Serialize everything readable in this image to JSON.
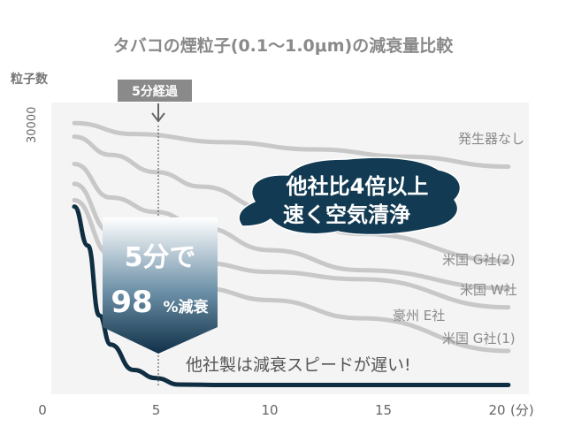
{
  "chart_data": {
    "type": "line",
    "title": "タバコの煙粒子(0.1〜1.0μm)の減衰量比較",
    "ylabel": "粒子数",
    "y_tick_labels": [
      "30000"
    ],
    "x_ticks": [
      0,
      5,
      10,
      15,
      20
    ],
    "x_unit": "(分)",
    "xlim": [
      0,
      20
    ],
    "ylim": [
      0,
      30000
    ],
    "grid": false,
    "marker": {
      "label": "5分経過",
      "x": 5
    },
    "series": [
      {
        "name": "発生器なし",
        "highlight": false,
        "x": [
          1.4,
          4,
          8,
          12,
          16,
          20.5
        ],
        "y": [
          29000,
          27800,
          26900,
          26100,
          25300,
          24200
        ]
      },
      {
        "name": "米国 G社(2)",
        "highlight": false,
        "x": [
          1.4,
          3,
          5,
          7,
          10,
          14,
          20.5
        ],
        "y": [
          27500,
          25500,
          23600,
          22000,
          19500,
          16800,
          13800
        ]
      },
      {
        "name": "米国 W社",
        "highlight": false,
        "x": [
          1.4,
          3,
          5,
          7,
          10,
          14,
          20.5
        ],
        "y": [
          24500,
          20800,
          19200,
          17500,
          15000,
          12800,
          10800
        ]
      },
      {
        "name": "豪州 E社",
        "highlight": false,
        "x": [
          1.4,
          3,
          5,
          7,
          10,
          14,
          20.5
        ],
        "y": [
          22300,
          17000,
          15000,
          13600,
          12600,
          11800,
          8700
        ]
      },
      {
        "name": "米国 G社(1)",
        "highlight": false,
        "x": [
          1.4,
          3,
          5,
          7,
          10,
          14,
          20.5
        ],
        "y": [
          20500,
          14500,
          12000,
          10800,
          9500,
          7500,
          3900
        ]
      },
      {
        "name": "",
        "highlight": true,
        "x": [
          1.4,
          2,
          2.5,
          3,
          4,
          5,
          6,
          8,
          12,
          20.5
        ],
        "y": [
          19800,
          15500,
          7800,
          4600,
          1800,
          900,
          200,
          150,
          150,
          150
        ]
      }
    ],
    "series_labels": [
      "発生器なし",
      "米国 G社(2)",
      "米国 W社",
      "豪州 E社",
      "米国 G社(1)"
    ],
    "callout": {
      "line1": "他社比4倍以上",
      "line2": "速く空気清浄"
    },
    "result": {
      "line1": "5分で",
      "value": "98",
      "unit": "%減衰"
    },
    "note": "他社製は減衰スピードが遅い!",
    "colors": {
      "highlight": "#0f2e42",
      "others": "#c8c8c8",
      "text": "#555555",
      "callout_bg": "#123a52"
    }
  }
}
